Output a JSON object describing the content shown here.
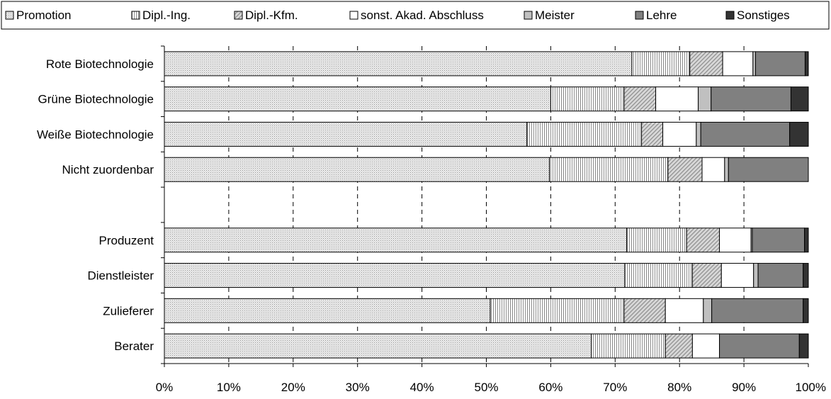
{
  "chart_data": {
    "type": "bar",
    "orientation": "horizontal",
    "stacked": true,
    "normalized": true,
    "legend_position": "top",
    "grid": "vertical-dashed",
    "xlim": [
      0,
      100
    ],
    "x_ticks": [
      "0%",
      "10%",
      "20%",
      "30%",
      "40%",
      "50%",
      "60%",
      "70%",
      "80%",
      "90%",
      "100%"
    ],
    "categories": [
      "Rote Biotechnologie",
      "Grüne Biotechnologie",
      "Weiße Biotechnologie",
      "Nicht zuordenbar",
      "",
      "Produzent",
      "Dienstleister",
      "Zulieferer",
      "Berater"
    ],
    "series": [
      {
        "name": "Promotion",
        "color": "#e6e6e6",
        "pattern": "dots",
        "values": [
          72.6,
          60.0,
          56.3,
          59.8,
          null,
          71.8,
          71.5,
          50.6,
          66.3
        ]
      },
      {
        "name": "Dipl.-Ing.",
        "color": "#ffffff",
        "pattern": "vertical-lines",
        "values": [
          9.0,
          11.4,
          17.8,
          18.4,
          null,
          9.3,
          10.5,
          20.8,
          11.5
        ]
      },
      {
        "name": "Dipl.-Kfm.",
        "color": "#d6d6d6",
        "pattern": "diagonal-lines",
        "values": [
          5.1,
          4.9,
          3.3,
          5.3,
          null,
          5.1,
          4.5,
          6.4,
          4.2
        ]
      },
      {
        "name": "sonst. Akad. Abschluss",
        "color": "#ffffff",
        "pattern": "none",
        "values": [
          4.7,
          6.6,
          5.2,
          3.5,
          null,
          4.9,
          5.0,
          5.9,
          4.2
        ]
      },
      {
        "name": "Meister",
        "color": "#c0c0c0",
        "pattern": "none",
        "values": [
          0.4,
          2.0,
          0.7,
          0.6,
          null,
          0.2,
          0.7,
          1.3,
          0.0
        ]
      },
      {
        "name": "Lehre",
        "color": "#808080",
        "pattern": "none",
        "values": [
          7.7,
          12.4,
          13.8,
          12.4,
          null,
          8.1,
          7.0,
          14.2,
          12.4
        ]
      },
      {
        "name": "Sonstiges",
        "color": "#333333",
        "pattern": "none",
        "values": [
          0.5,
          2.7,
          2.9,
          0.0,
          null,
          0.6,
          0.8,
          0.8,
          1.4
        ]
      }
    ]
  }
}
